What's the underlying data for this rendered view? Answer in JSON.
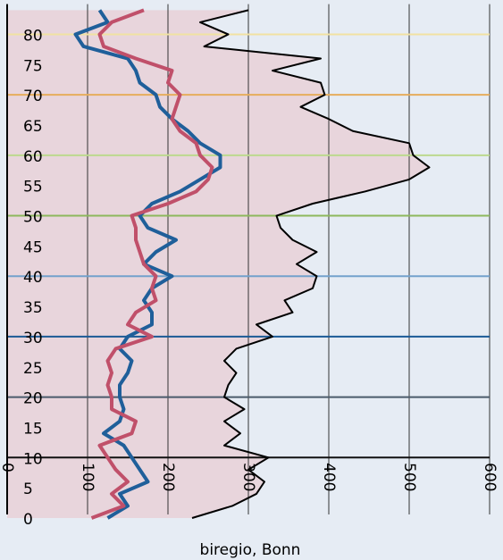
{
  "chart_data": {
    "type": "line",
    "orientation": "vertical",
    "xlabel": "biregio, Bonn",
    "xlim": [
      0,
      600
    ],
    "xticks": [
      0,
      100,
      200,
      300,
      400,
      500,
      600
    ],
    "ylim": [
      0,
      85
    ],
    "yticks": [
      0,
      5,
      10,
      15,
      20,
      25,
      30,
      35,
      40,
      45,
      50,
      55,
      60,
      65,
      70,
      75,
      80
    ],
    "reference_lines": [
      {
        "y": 10,
        "color": "#111111"
      },
      {
        "y": 20,
        "color": "#4b5b6b"
      },
      {
        "y": 30,
        "color": "#1b5a96"
      },
      {
        "y": 40,
        "color": "#73a2cc"
      },
      {
        "y": 50,
        "color": "#8db85c"
      },
      {
        "y": 60,
        "color": "#bcd98f"
      },
      {
        "y": 70,
        "color": "#e6ad5c"
      },
      {
        "y": 80,
        "color": "#f1e2a2"
      }
    ],
    "y": [
      0,
      2,
      4,
      6,
      8,
      10,
      12,
      14,
      16,
      18,
      20,
      22,
      24,
      26,
      28,
      30,
      32,
      34,
      36,
      38,
      40,
      42,
      44,
      46,
      48,
      50,
      52,
      54,
      56,
      58,
      60,
      62,
      64,
      66,
      68,
      70,
      72,
      74,
      76,
      78,
      80,
      82,
      84
    ],
    "series": [
      {
        "color": "#000000",
        "fill": "#e8d5dc",
        "values": [
          230,
          280,
          310,
          320,
          300,
          325,
          270,
          290,
          270,
          295,
          270,
          275,
          285,
          270,
          285,
          330,
          310,
          355,
          345,
          380,
          385,
          360,
          385,
          355,
          340,
          335,
          380,
          445,
          500,
          525,
          505,
          500,
          430,
          400,
          365,
          395,
          390,
          330,
          390,
          245,
          275,
          240,
          300
        ]
      },
      {
        "color": "#1f5f9a",
        "values": [
          125,
          150,
          140,
          175,
          165,
          155,
          145,
          120,
          140,
          145,
          140,
          140,
          150,
          155,
          140,
          150,
          180,
          180,
          170,
          180,
          205,
          170,
          185,
          210,
          175,
          165,
          180,
          215,
          240,
          265,
          265,
          240,
          225,
          205,
          190,
          185,
          165,
          160,
          150,
          95,
          85,
          125,
          115
        ]
      },
      {
        "color": "#c0506a",
        "values": [
          105,
          145,
          130,
          150,
          135,
          125,
          115,
          155,
          160,
          130,
          130,
          125,
          130,
          125,
          135,
          180,
          150,
          160,
          185,
          180,
          185,
          170,
          165,
          160,
          160,
          155,
          200,
          235,
          250,
          255,
          240,
          235,
          215,
          205,
          210,
          215,
          200,
          205,
          160,
          120,
          115,
          130,
          170
        ]
      }
    ]
  }
}
